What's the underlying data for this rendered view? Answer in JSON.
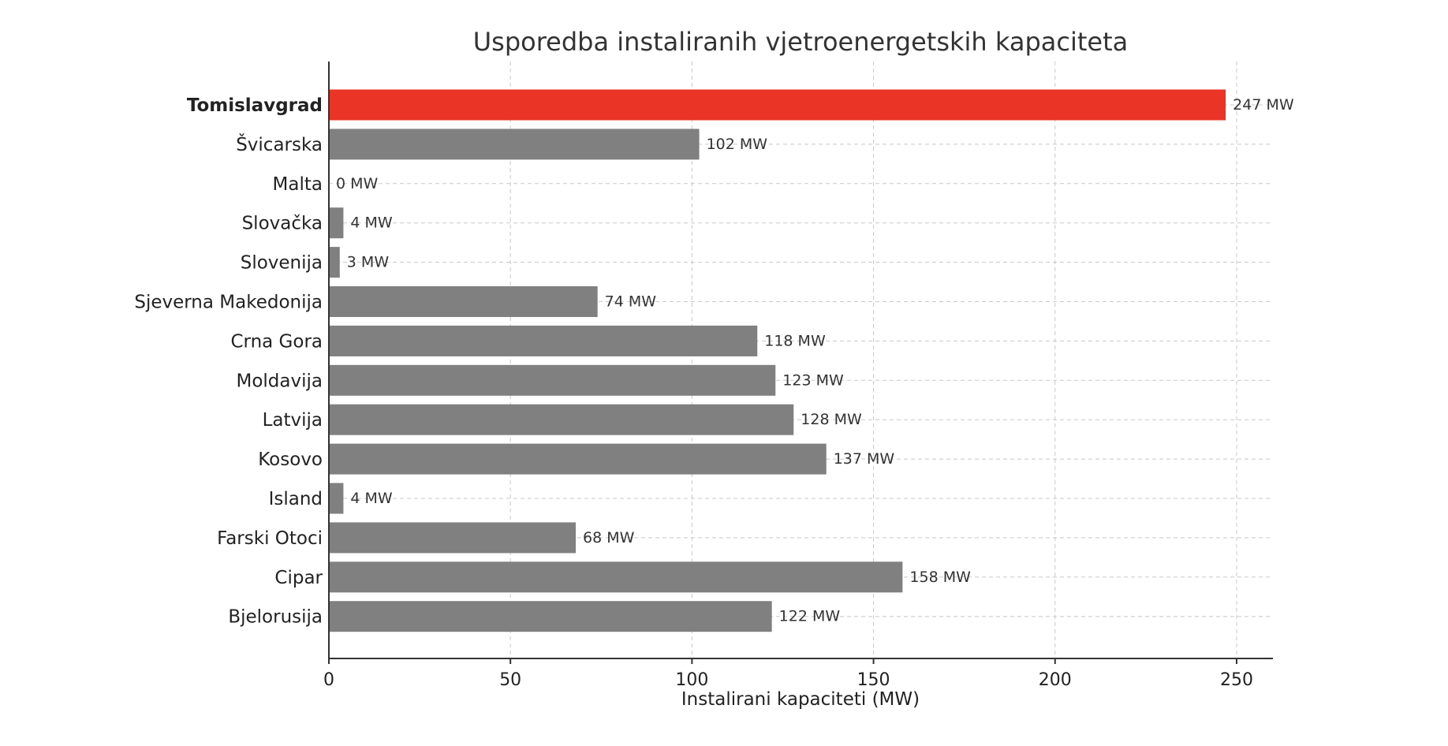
{
  "chart_data": {
    "type": "bar",
    "orientation": "horizontal",
    "title": "Usporedba instaliranih vjetroenergetskih kapaciteta",
    "xlabel": "Instalirani kapaciteti (MW)",
    "ylabel": "",
    "xlim": [
      0,
      260
    ],
    "xticks": [
      0,
      50,
      100,
      150,
      200,
      250
    ],
    "grid": true,
    "value_suffix": " MW",
    "categories": [
      "Tomislavgrad",
      "Švicarska",
      "Malta",
      "Slovačka",
      "Slovenija",
      "Sjeverna Makedonija",
      "Crna Gora",
      "Moldavija",
      "Latvija",
      "Kosovo",
      "Island",
      "Farski Otoci",
      "Cipar",
      "Bjelorusija"
    ],
    "values": [
      247,
      102,
      0,
      4,
      3,
      74,
      118,
      123,
      128,
      137,
      4,
      68,
      158,
      122
    ],
    "value_labels": [
      "247 MW",
      "102 MW",
      "0 MW",
      "4 MW",
      "3 MW",
      "74 MW",
      "118 MW",
      "123 MW",
      "128 MW",
      "137 MW",
      "4 MW",
      "68 MW",
      "158 MW",
      "122 MW"
    ],
    "highlight": "Tomislavgrad",
    "colors": {
      "highlight": "#e93426",
      "default": "#808080"
    }
  }
}
